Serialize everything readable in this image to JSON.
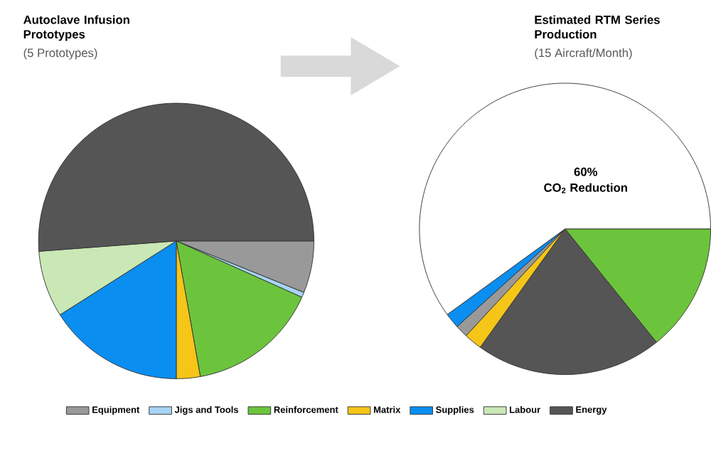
{
  "chart_data": [
    {
      "type": "pie",
      "title": "Autoclave Infusion Prototypes",
      "subtitle": "(5 Prototypes)",
      "legend": "bottom",
      "categories": [
        "Equipment",
        "Jigs and Tools",
        "Reinforcement",
        "Matrix",
        "Supplies",
        "Labour",
        "Energy"
      ],
      "values": [
        6.1,
        0.6,
        15.5,
        2.8,
        16,
        7.8,
        51.2
      ],
      "colors": [
        "#999999",
        "#a8d4f5",
        "#6cc43c",
        "#f5c518",
        "#0a8ef0",
        "#c9e8b5",
        "#555555"
      ]
    },
    {
      "type": "pie",
      "title": "Estimated RTM Series Production",
      "subtitle": "(15 Aircraft/Month)",
      "categories": [
        null,
        null,
        null,
        null,
        null,
        "CO$_{2}$ Reduction"
      ],
      "values": [
        14.2,
        20.7,
        2,
        1.4,
        1.7,
        60
      ],
      "value_labels": [
        null,
        null,
        null,
        null,
        null,
        "60%"
      ],
      "colors": [
        "#6cc43c",
        "#555555",
        "#f5c518",
        "#999999",
        "#0a8ef0",
        "#ffffff"
      ]
    }
  ]
}
